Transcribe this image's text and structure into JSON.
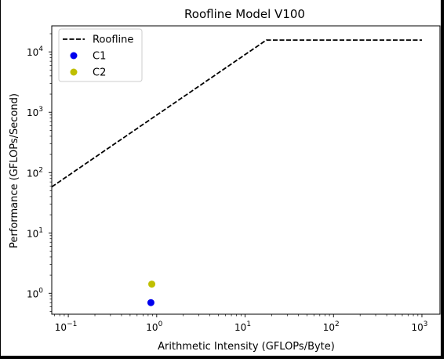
{
  "chart_data": {
    "type": "line",
    "title": "Roofline Model V100",
    "xlabel": "Arithmetic Intensity (GFLOPs/Byte)",
    "ylabel": "Performance (GFLOPs/Second)",
    "xscale": "log",
    "yscale": "log",
    "xlim": [
      0.065,
      1600
    ],
    "ylim": [
      0.45,
      27000
    ],
    "x_ticks": [
      {
        "value": 0.1,
        "base": "10",
        "exp": "−1"
      },
      {
        "value": 1,
        "base": "10",
        "exp": "0"
      },
      {
        "value": 10,
        "base": "10",
        "exp": "1"
      },
      {
        "value": 100,
        "base": "10",
        "exp": "2"
      },
      {
        "value": 1000,
        "base": "10",
        "exp": "3"
      }
    ],
    "y_ticks": [
      {
        "value": 1,
        "base": "10",
        "exp": "0"
      },
      {
        "value": 10,
        "base": "10",
        "exp": "1"
      },
      {
        "value": 100,
        "base": "10",
        "exp": "2"
      },
      {
        "value": 1000,
        "base": "10",
        "exp": "3"
      },
      {
        "value": 10000,
        "base": "10",
        "exp": "4"
      }
    ],
    "roofline": {
      "name": "Roofline",
      "points": [
        [
          0.065,
          58
        ],
        [
          17.4,
          15700
        ],
        [
          1000,
          15700
        ]
      ],
      "color": "#000000"
    },
    "points": [
      {
        "name": "C1",
        "x": 0.86,
        "y": 0.7,
        "color": "#0000ee"
      },
      {
        "name": "C2",
        "x": 0.88,
        "y": 1.42,
        "color": "#bfbf00"
      }
    ],
    "legend": {
      "placement": "top-left",
      "entries": [
        {
          "label": "Roofline",
          "marker": "dashed-line",
          "color": "#000000"
        },
        {
          "label": "C1",
          "marker": "circle",
          "color": "#0000ee"
        },
        {
          "label": "C2",
          "marker": "circle",
          "color": "#bfbf00"
        }
      ]
    },
    "grid": false
  }
}
